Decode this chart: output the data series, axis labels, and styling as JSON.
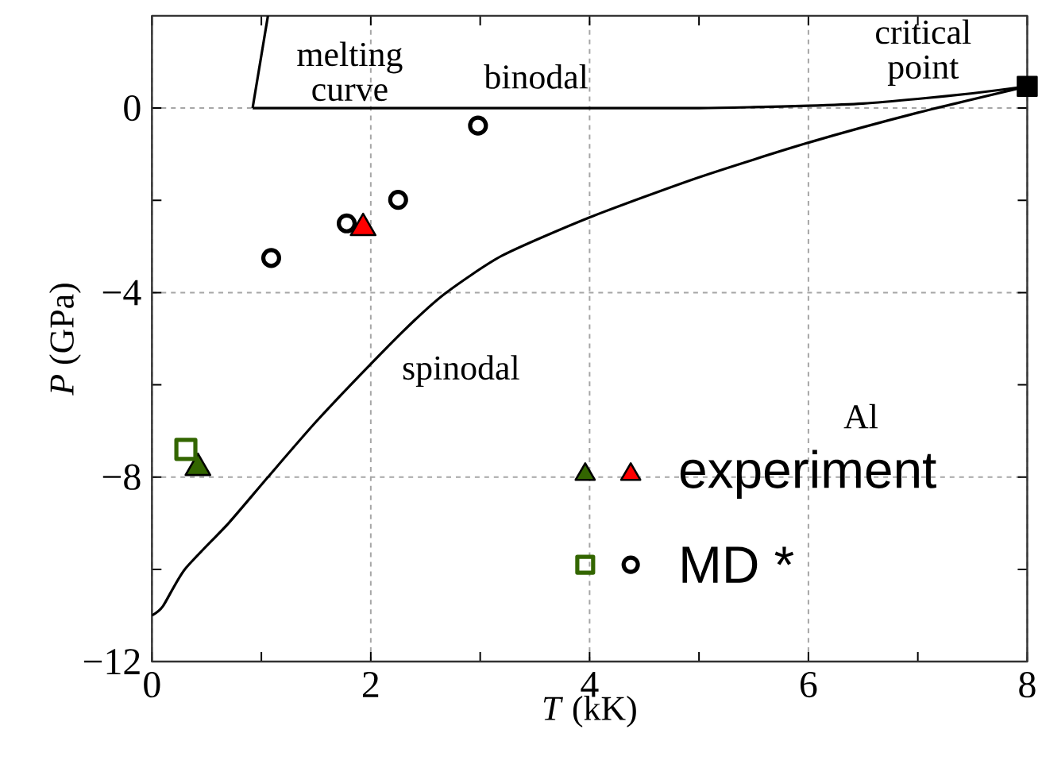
{
  "chart_data": {
    "type": "scatter",
    "xlabel": "*T* (kK)",
    "ylabel": "*P* (GPa)",
    "xlim": [
      0,
      8
    ],
    "ylim": [
      -12,
      2
    ],
    "xticks": [
      0,
      {
        "value": 1,
        "label": null
      },
      2,
      {
        "value": 3,
        "label": null
      },
      4,
      {
        "value": 5,
        "label": null
      },
      6,
      {
        "value": 7,
        "label": null
      },
      8
    ],
    "yticks": [
      {
        "value": -12,
        "label": "−12"
      },
      {
        "value": -10,
        "label": null
      },
      {
        "value": -8,
        "label": "−8"
      },
      {
        "value": -6,
        "label": null
      },
      {
        "value": -4,
        "label": "−4"
      },
      {
        "value": -2,
        "label": null
      },
      0
    ],
    "grid": true,
    "legend": "bottom right",
    "series": [
      {
        "type": "line",
        "color": "#000000",
        "x": [
          0.92,
          1.06
        ],
        "values": [
          0,
          2
        ]
      },
      {
        "type": "line",
        "color": "#000000",
        "x": [
          0.92,
          2,
          3,
          4,
          5,
          5.5,
          6,
          6.5,
          7,
          7.5,
          8
        ],
        "values": [
          0,
          0,
          0,
          0,
          0,
          0.02,
          0.05,
          0.1,
          0.2,
          0.32,
          0.47
        ]
      },
      {
        "type": "line",
        "color": "#000000",
        "x": [
          0,
          0.1,
          0.3,
          0.7,
          1.06,
          1.5,
          2,
          2.4,
          2.69,
          3.2,
          4,
          5,
          6,
          7,
          8
        ],
        "values": [
          -11.0,
          -10.8,
          -10.0,
          -9.0,
          -8.0,
          -6.8,
          -5.55,
          -4.6,
          -4.0,
          -3.2,
          -2.37,
          -1.5,
          -0.75,
          -0.1,
          0.47
        ]
      },
      {
        "type": "scatter",
        "marker": "square",
        "color": "#000000",
        "x": [
          8
        ],
        "values": [
          0.47
        ]
      },
      {
        "name": "experiment",
        "marker": "triangle",
        "colors": [
          "#336600",
          "#ff0000"
        ],
        "x": [
          0.42,
          1.93
        ],
        "values": [
          -7.8,
          -2.6
        ]
      },
      {
        "marker": "square",
        "color": "#336600",
        "x": [
          0.31
        ],
        "values": [
          -7.4
        ]
      },
      {
        "name": "MD *",
        "marker": "circle",
        "color": "#000000",
        "x": [
          1.09,
          1.78,
          2.25,
          2.98
        ],
        "values": [
          -3.25,
          -2.5,
          -1.99,
          -0.38
        ]
      }
    ],
    "annotations": [
      "melting curve",
      "binodal",
      "critical point",
      "spinodal",
      "Al"
    ]
  }
}
